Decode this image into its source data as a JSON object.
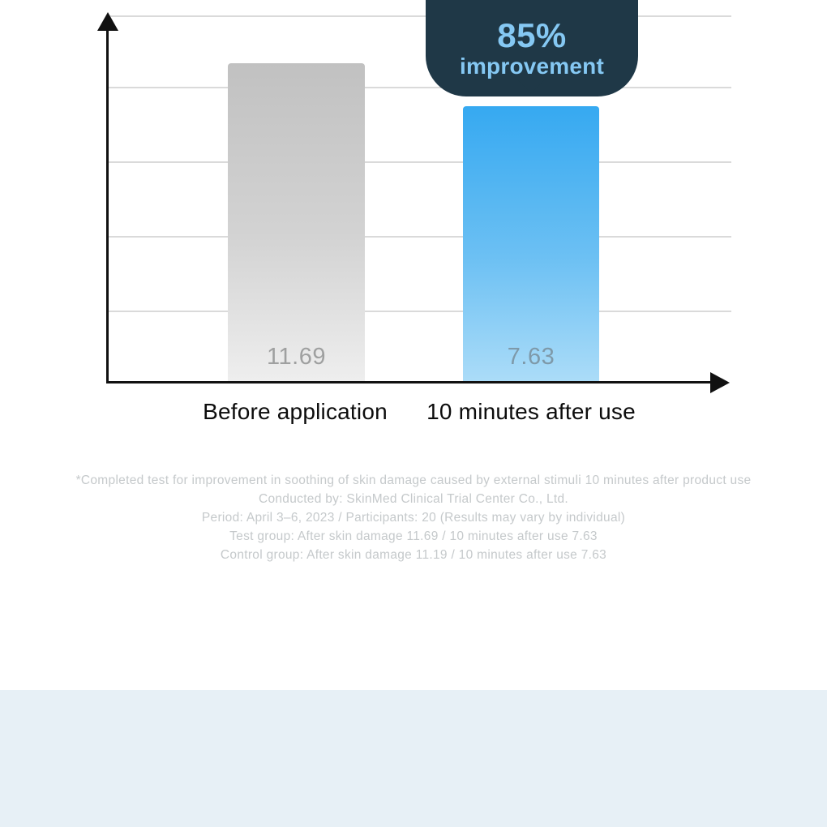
{
  "chart_data": {
    "type": "bar",
    "categories": [
      "Before application",
      "10 minutes after use"
    ],
    "values": [
      11.69,
      7.63
    ],
    "title": "",
    "xlabel": "",
    "ylabel": "",
    "yticks": [],
    "grid": true,
    "gridline_count": 5,
    "legend": "none",
    "annotation": {
      "text_primary": "85%",
      "text_secondary": "improvement",
      "attached_to": "10 minutes after use"
    }
  },
  "callout": {
    "percent": "85%",
    "label": "improvement"
  },
  "bars": [
    {
      "label": "Before application",
      "value": "11.69",
      "color_top": "#c1c1c1",
      "color_bottom": "#eeeeee"
    },
    {
      "label": "10 minutes after use",
      "value": "7.63",
      "color_top": "#36a9f1",
      "color_bottom": "#abdcf8"
    }
  ],
  "footnote": {
    "lines": [
      "*Completed test for improvement in soothing of skin damage caused by external stimuli 10 minutes after product use",
      "Conducted by: SkinMed Clinical Trial Center Co., Ltd.",
      "Period: April 3–6, 2023 / Participants: 20 (Results may vary by individual)",
      "Test group: After skin damage 11.69 / 10 minutes after use 7.63",
      "Control group: After skin damage 11.19 / 10 minutes after use 7.63"
    ]
  },
  "colors": {
    "callout_bg": "#1f3847",
    "callout_text": "#85c8f3",
    "gridline": "#dadada",
    "axis": "#111111",
    "bar_gray_value_text": "#9fa0a0",
    "bar_blue_value_text": "#7e99a9",
    "category_label_text": "#0c0c0c",
    "footnote_text": "#c5c9cb",
    "bottom_section_bg": "#e7f0f6",
    "page_bg": "#ffffff"
  }
}
